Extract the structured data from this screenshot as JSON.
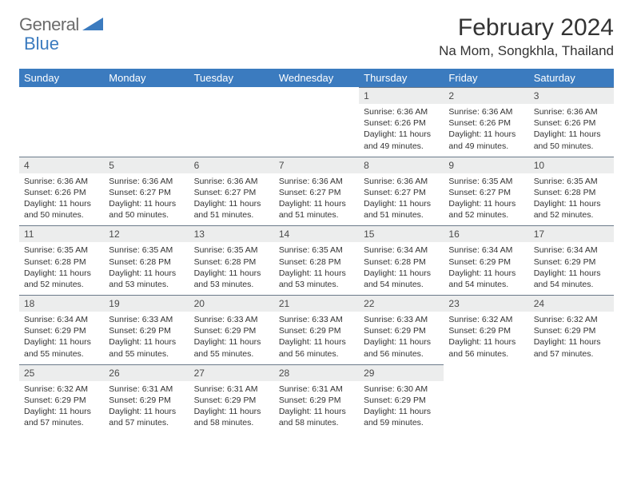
{
  "logo": {
    "text_gray": "General",
    "text_blue": "Blue"
  },
  "title": "February 2024",
  "location": "Na Mom, Songkhla, Thailand",
  "colors": {
    "header_bg": "#3b7bbf",
    "header_text": "#ffffff",
    "daynum_bg": "#eceded",
    "border": "#6b7a8a",
    "text": "#333333"
  },
  "days_of_week": [
    "Sunday",
    "Monday",
    "Tuesday",
    "Wednesday",
    "Thursday",
    "Friday",
    "Saturday"
  ],
  "weeks": [
    [
      null,
      null,
      null,
      null,
      {
        "n": "1",
        "sr": "6:36 AM",
        "ss": "6:26 PM",
        "dl": "11 hours and 49 minutes."
      },
      {
        "n": "2",
        "sr": "6:36 AM",
        "ss": "6:26 PM",
        "dl": "11 hours and 49 minutes."
      },
      {
        "n": "3",
        "sr": "6:36 AM",
        "ss": "6:26 PM",
        "dl": "11 hours and 50 minutes."
      }
    ],
    [
      {
        "n": "4",
        "sr": "6:36 AM",
        "ss": "6:26 PM",
        "dl": "11 hours and 50 minutes."
      },
      {
        "n": "5",
        "sr": "6:36 AM",
        "ss": "6:27 PM",
        "dl": "11 hours and 50 minutes."
      },
      {
        "n": "6",
        "sr": "6:36 AM",
        "ss": "6:27 PM",
        "dl": "11 hours and 51 minutes."
      },
      {
        "n": "7",
        "sr": "6:36 AM",
        "ss": "6:27 PM",
        "dl": "11 hours and 51 minutes."
      },
      {
        "n": "8",
        "sr": "6:36 AM",
        "ss": "6:27 PM",
        "dl": "11 hours and 51 minutes."
      },
      {
        "n": "9",
        "sr": "6:35 AM",
        "ss": "6:27 PM",
        "dl": "11 hours and 52 minutes."
      },
      {
        "n": "10",
        "sr": "6:35 AM",
        "ss": "6:28 PM",
        "dl": "11 hours and 52 minutes."
      }
    ],
    [
      {
        "n": "11",
        "sr": "6:35 AM",
        "ss": "6:28 PM",
        "dl": "11 hours and 52 minutes."
      },
      {
        "n": "12",
        "sr": "6:35 AM",
        "ss": "6:28 PM",
        "dl": "11 hours and 53 minutes."
      },
      {
        "n": "13",
        "sr": "6:35 AM",
        "ss": "6:28 PM",
        "dl": "11 hours and 53 minutes."
      },
      {
        "n": "14",
        "sr": "6:35 AM",
        "ss": "6:28 PM",
        "dl": "11 hours and 53 minutes."
      },
      {
        "n": "15",
        "sr": "6:34 AM",
        "ss": "6:28 PM",
        "dl": "11 hours and 54 minutes."
      },
      {
        "n": "16",
        "sr": "6:34 AM",
        "ss": "6:29 PM",
        "dl": "11 hours and 54 minutes."
      },
      {
        "n": "17",
        "sr": "6:34 AM",
        "ss": "6:29 PM",
        "dl": "11 hours and 54 minutes."
      }
    ],
    [
      {
        "n": "18",
        "sr": "6:34 AM",
        "ss": "6:29 PM",
        "dl": "11 hours and 55 minutes."
      },
      {
        "n": "19",
        "sr": "6:33 AM",
        "ss": "6:29 PM",
        "dl": "11 hours and 55 minutes."
      },
      {
        "n": "20",
        "sr": "6:33 AM",
        "ss": "6:29 PM",
        "dl": "11 hours and 55 minutes."
      },
      {
        "n": "21",
        "sr": "6:33 AM",
        "ss": "6:29 PM",
        "dl": "11 hours and 56 minutes."
      },
      {
        "n": "22",
        "sr": "6:33 AM",
        "ss": "6:29 PM",
        "dl": "11 hours and 56 minutes."
      },
      {
        "n": "23",
        "sr": "6:32 AM",
        "ss": "6:29 PM",
        "dl": "11 hours and 56 minutes."
      },
      {
        "n": "24",
        "sr": "6:32 AM",
        "ss": "6:29 PM",
        "dl": "11 hours and 57 minutes."
      }
    ],
    [
      {
        "n": "25",
        "sr": "6:32 AM",
        "ss": "6:29 PM",
        "dl": "11 hours and 57 minutes."
      },
      {
        "n": "26",
        "sr": "6:31 AM",
        "ss": "6:29 PM",
        "dl": "11 hours and 57 minutes."
      },
      {
        "n": "27",
        "sr": "6:31 AM",
        "ss": "6:29 PM",
        "dl": "11 hours and 58 minutes."
      },
      {
        "n": "28",
        "sr": "6:31 AM",
        "ss": "6:29 PM",
        "dl": "11 hours and 58 minutes."
      },
      {
        "n": "29",
        "sr": "6:30 AM",
        "ss": "6:29 PM",
        "dl": "11 hours and 59 minutes."
      },
      null,
      null
    ]
  ],
  "labels": {
    "sunrise": "Sunrise:",
    "sunset": "Sunset:",
    "daylight": "Daylight:"
  }
}
